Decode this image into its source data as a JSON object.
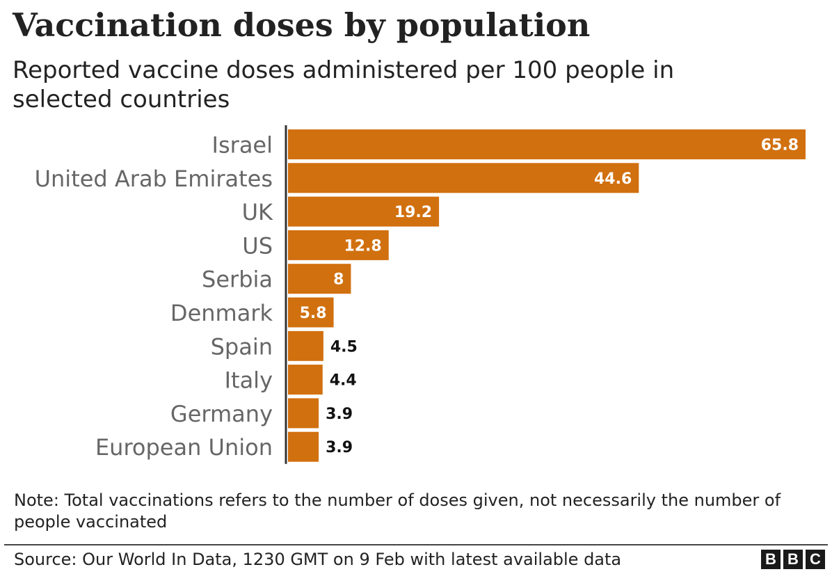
{
  "header": {
    "title": "Vaccination doses by population",
    "subtitle": "Reported vaccine doses administered per 100 people in selected countries"
  },
  "chart_data": {
    "type": "bar",
    "orientation": "horizontal",
    "categories": [
      "Israel",
      "United Arab Emirates",
      "UK",
      "US",
      "Serbia",
      "Denmark",
      "Spain",
      "Italy",
      "Germany",
      "European Union"
    ],
    "values": [
      65.8,
      44.6,
      19.2,
      12.8,
      8,
      5.8,
      4.5,
      4.4,
      3.9,
      3.9
    ],
    "value_labels": [
      "65.8",
      "44.6",
      "19.2",
      "12.8",
      "8",
      "5.8",
      "4.5",
      "4.4",
      "3.9",
      "3.9"
    ],
    "xlim": [
      0,
      65.8
    ],
    "bar_color": "#d1700f",
    "grid": false,
    "legend": "none"
  },
  "footer": {
    "note": "Note: Total vaccinations refers to the number of doses given, not necessarily the number of people vaccinated",
    "source": "Source: Our World In Data, 1230 GMT on 9 Feb with latest available data",
    "logo": [
      "B",
      "B",
      "C"
    ]
  }
}
